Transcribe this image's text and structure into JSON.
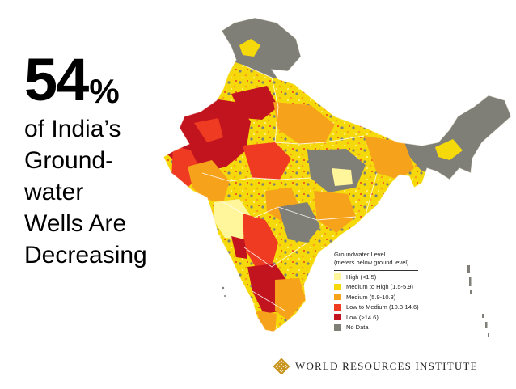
{
  "headline": {
    "number": "54",
    "percent_sign": "%",
    "lines": [
      "of India’s",
      "Ground-",
      "water",
      "Wells Are",
      "Decreasing"
    ]
  },
  "legend": {
    "title": "Groundwater Level",
    "subtitle": "(meters below ground level)",
    "items": [
      {
        "label": "High (<1.5)",
        "color": "#fff59a"
      },
      {
        "label": "Medium to High (1.5-5.9)",
        "color": "#f5d90a"
      },
      {
        "label": "Medium (5.9-10.3)",
        "color": "#f7a21b"
      },
      {
        "label": "Low to Medium (10.3-14.6)",
        "color": "#ee3b22"
      },
      {
        "label": "Low (>14.6)",
        "color": "#c2141e"
      },
      {
        "label": "No Data",
        "color": "#7f7f77"
      }
    ]
  },
  "brand": {
    "name": "WORLD RESOURCES INSTITUTE",
    "logo_color": "#c8951f",
    "logo_icon": "wri-knot-logo"
  },
  "map_colors": {
    "no_data": "#7f7f77",
    "medium_high": "#f5d90a",
    "medium": "#f7a21b",
    "low_medium": "#ee3b22",
    "low": "#c2141e",
    "high": "#fff59a"
  }
}
